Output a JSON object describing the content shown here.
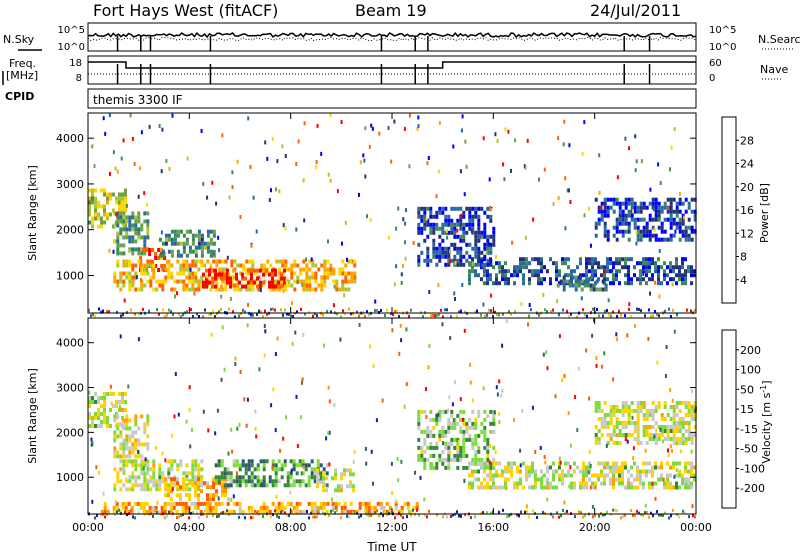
{
  "header": {
    "title": "Fort Hays West (fitACF)",
    "beam": "Beam 19",
    "date": "24/Jul/2011"
  },
  "status_panels": {
    "nsky_label": "N.Sky",
    "nsearch_label": "N.Search",
    "noise_ticks_left": [
      "10^5",
      "10^0"
    ],
    "noise_ticks_right": [
      "10^5",
      "10^0"
    ],
    "freq_label_1": "Freq.",
    "freq_label_2": "[MHz]",
    "freq_ticks": [
      "18",
      "8"
    ],
    "nave_label": "Nave",
    "nave_ticks": [
      "60",
      "0"
    ],
    "cpid_label": "CPID",
    "cpid_value": "themis 3300 IF",
    "freq_step": {
      "low_until": "01:30",
      "rise_at": "14:00"
    },
    "marker_times": [
      "01:10",
      "02:05",
      "02:28",
      "04:50",
      "11:35",
      "12:55",
      "13:25",
      "21:10",
      "22:10"
    ]
  },
  "chart_data": [
    {
      "type": "heatmap",
      "parameter": "Power",
      "xlabel": "",
      "ylabel": "Slant Range [km]",
      "x_ticks": [
        "00:00",
        "04:00",
        "08:00",
        "12:00",
        "16:00",
        "20:00",
        "00:00"
      ],
      "xlim_hours": [
        0,
        24
      ],
      "y_ticks": [
        "1000",
        "2000",
        "3000",
        "4000"
      ],
      "ylim_km": [
        180,
        4550
      ],
      "colorbar_label": "Power [dB]",
      "colorbar_ticks": [
        "4",
        "8",
        "12",
        "16",
        "20",
        "24",
        "28"
      ],
      "colorbar_colors": [
        "#0000ff",
        "#22337a",
        "#2a6aa0",
        "#3c8a5a",
        "#6fa04a",
        "#a8c832",
        "#ffd700",
        "#ffa500",
        "#ff6400",
        "#ff0000"
      ],
      "regions": [
        {
          "t": [
            0.0,
            1.5
          ],
          "r": [
            2100,
            2900
          ],
          "level": 0.55
        },
        {
          "t": [
            1.0,
            2.4
          ],
          "r": [
            1500,
            2400
          ],
          "level": 0.4
        },
        {
          "t": [
            1.9,
            3.2
          ],
          "r": [
            1150,
            1600
          ],
          "level": 0.85
        },
        {
          "t": [
            2.8,
            5.0
          ],
          "r": [
            1400,
            2000
          ],
          "level": 0.35
        },
        {
          "t": [
            1.0,
            10.5
          ],
          "r": [
            700,
            1350
          ],
          "level": 0.7
        },
        {
          "t": [
            4.5,
            7.8
          ],
          "r": [
            750,
            1150
          ],
          "level": 0.95
        },
        {
          "t": [
            15.0,
            24.0
          ],
          "r": [
            800,
            1400
          ],
          "level": 0.2
        },
        {
          "t": [
            18.5,
            20.5
          ],
          "r": [
            700,
            1000
          ],
          "level": 0.3
        },
        {
          "t": [
            13.0,
            16.0
          ],
          "r": [
            1200,
            2500
          ],
          "level": 0.15
        },
        {
          "t": [
            20.0,
            24.0
          ],
          "r": [
            1800,
            2700
          ],
          "level": 0.15
        }
      ]
    },
    {
      "type": "heatmap",
      "parameter": "Velocity",
      "xlabel": "Time UT",
      "ylabel": "Slant Range [km]",
      "x_ticks": [
        "00:00",
        "04:00",
        "08:00",
        "12:00",
        "16:00",
        "20:00",
        "00:00"
      ],
      "xlim_hours": [
        0,
        24
      ],
      "y_ticks": [
        "1000",
        "2000",
        "3000",
        "4000"
      ],
      "ylim_km": [
        180,
        4550
      ],
      "colorbar_label": "Velocity [m s^-1]",
      "colorbar_ticks": [
        "200",
        "100",
        "50",
        "15",
        "-15",
        "-50",
        "-100",
        "-200"
      ],
      "colorbar_colors": [
        "#1a1aa8",
        "#2d5a6e",
        "#36863a",
        "#7cdc3c",
        "#c8c8c8",
        "#ffd200",
        "#ffa000",
        "#ff5a00",
        "#ff0000"
      ],
      "regions": [
        {
          "t": [
            0.0,
            1.5
          ],
          "r": [
            2100,
            2900
          ],
          "level": 0.5
        },
        {
          "t": [
            1.0,
            2.4
          ],
          "r": [
            1500,
            2400
          ],
          "level": 0.55
        },
        {
          "t": [
            1.0,
            4.5
          ],
          "r": [
            700,
            1400
          ],
          "level": 0.5
        },
        {
          "t": [
            3.0,
            5.5
          ],
          "r": [
            500,
            1000
          ],
          "level": 0.7
        },
        {
          "t": [
            5.0,
            9.5
          ],
          "r": [
            800,
            1400
          ],
          "level": 0.3
        },
        {
          "t": [
            9.0,
            10.5
          ],
          "r": [
            700,
            1200
          ],
          "level": 0.5
        },
        {
          "t": [
            15.0,
            24.0
          ],
          "r": [
            750,
            1350
          ],
          "level": 0.5
        },
        {
          "t": [
            0.5,
            13.0
          ],
          "r": [
            200,
            450
          ],
          "level": 0.7
        },
        {
          "t": [
            13.0,
            16.0
          ],
          "r": [
            1200,
            2500
          ],
          "level": 0.4
        },
        {
          "t": [
            20.0,
            24.0
          ],
          "r": [
            1800,
            2700
          ],
          "level": 0.5
        }
      ]
    }
  ]
}
